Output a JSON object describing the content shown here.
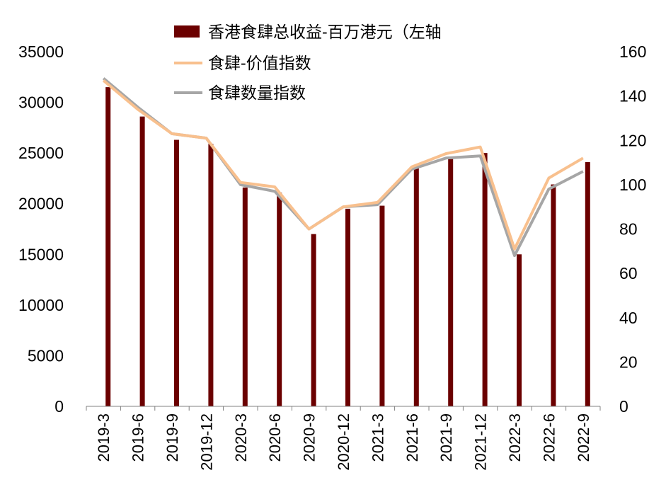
{
  "chart_data": {
    "type": "bar+line",
    "categories": [
      "2019-3",
      "2019-6",
      "2019-9",
      "2019-12",
      "2020-3",
      "2020-6",
      "2020-9",
      "2020-12",
      "2021-3",
      "2021-6",
      "2021-9",
      "2021-12",
      "2022-3",
      "2022-6",
      "2022-9"
    ],
    "bars": {
      "name": "香港食肆总收益-百万港元（左轴",
      "color": "#6b0000",
      "values": [
        31500,
        28600,
        26300,
        25900,
        21600,
        21100,
        17000,
        19500,
        19800,
        23600,
        24400,
        25000,
        15000,
        21900,
        24100
      ]
    },
    "lines": [
      {
        "name": "食肆-价值指数",
        "color": "#f8c08e",
        "values": [
          147,
          134,
          123,
          121,
          101,
          99,
          80,
          90,
          92,
          108,
          114,
          117,
          71,
          103,
          112
        ]
      },
      {
        "name": "食肆数量指数",
        "color": "#a6a6a6",
        "values": [
          148,
          135,
          123,
          121,
          100,
          97,
          80,
          90,
          91,
          107,
          112,
          113,
          68,
          98,
          106
        ]
      }
    ],
    "y_left": {
      "min": 0,
      "max": 35000,
      "ticks": [
        "0",
        "5000",
        "10000",
        "15000",
        "20000",
        "25000",
        "30000",
        "35000"
      ]
    },
    "y_right": {
      "min": 0,
      "max": 160,
      "ticks": [
        "0",
        "20",
        "40",
        "60",
        "80",
        "100",
        "120",
        "140",
        "160"
      ]
    },
    "legend_position": "top"
  }
}
